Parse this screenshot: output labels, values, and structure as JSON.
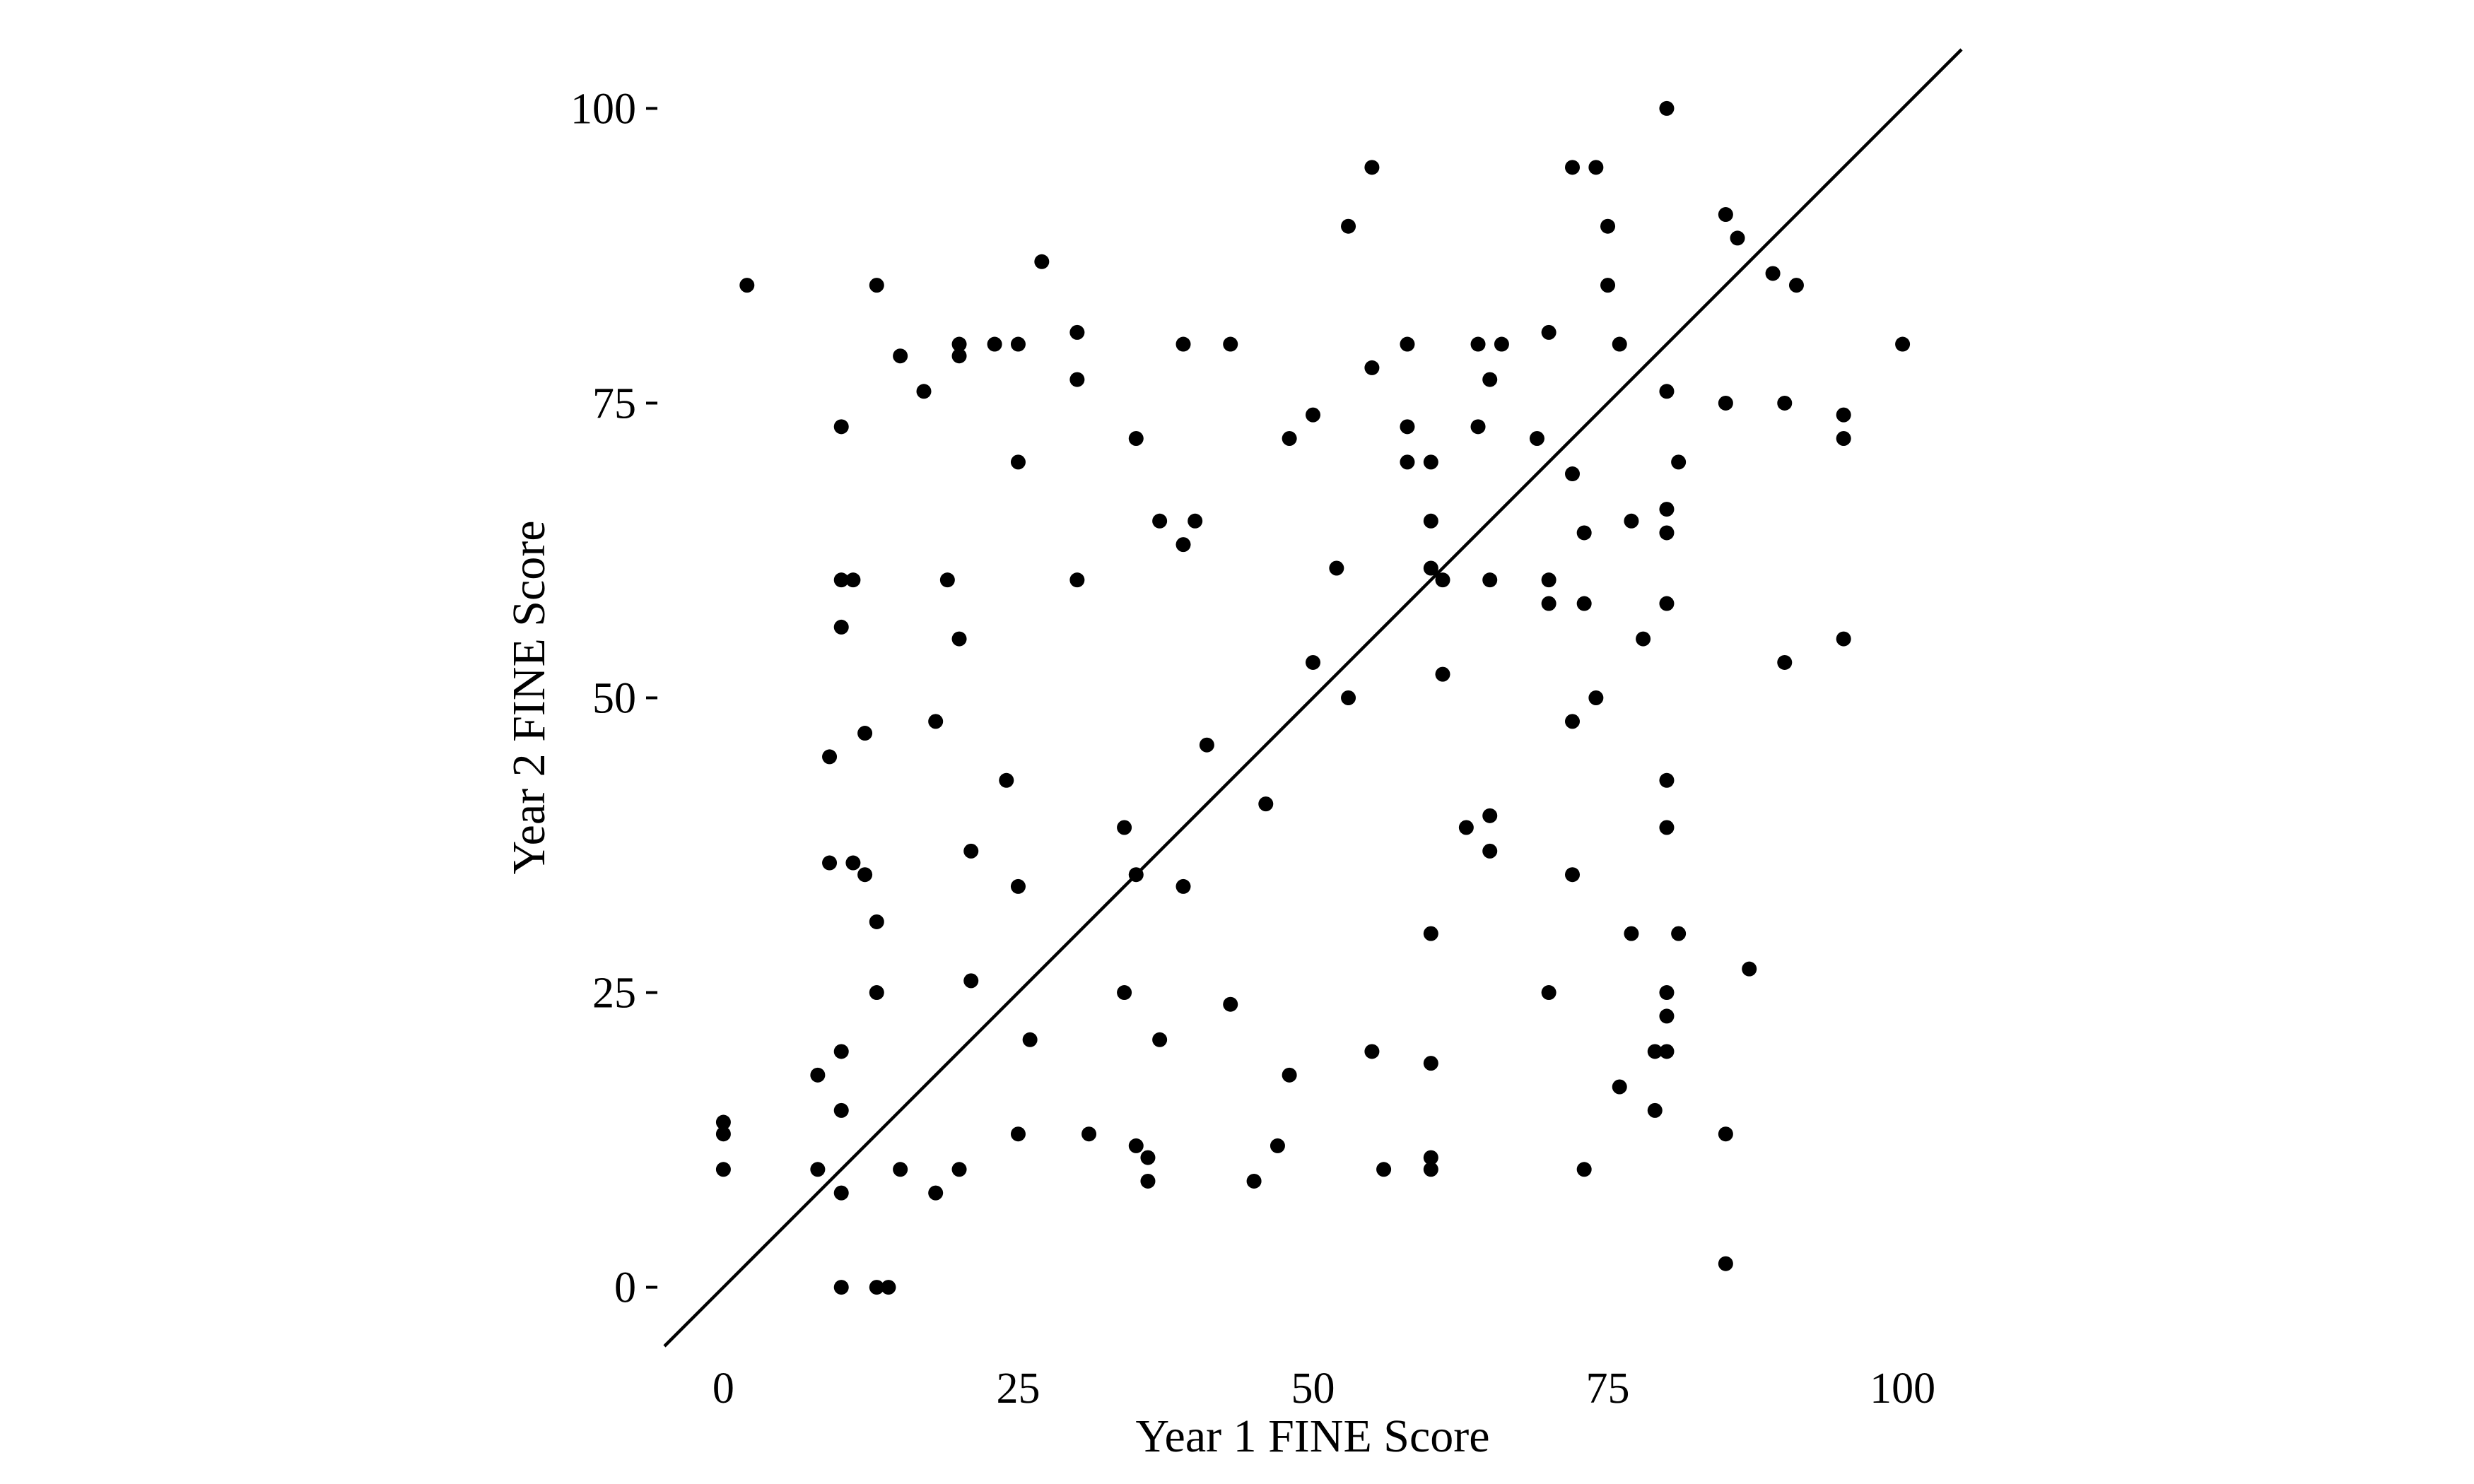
{
  "chart_data": {
    "type": "scatter",
    "xlabel": "Year 1 FINE Score",
    "ylabel": "Year 2 FINE Score",
    "xlim": [
      -5,
      105
    ],
    "ylim": [
      -5,
      105
    ],
    "x_ticks": [
      0,
      25,
      50,
      75,
      100
    ],
    "y_ticks": [
      0,
      25,
      50,
      75,
      100
    ],
    "x_tick_labels": [
      "0",
      "25",
      "50",
      "75",
      "100"
    ],
    "y_tick_labels": [
      "0",
      "25",
      "50",
      "75",
      "100"
    ],
    "grid": false,
    "legend": "none",
    "reference_line": {
      "type": "identity",
      "slope": 1,
      "intercept": 0
    },
    "colors": {
      "points": "#000000",
      "line": "#000000",
      "background": "#ffffff"
    },
    "points": [
      [
        0,
        14
      ],
      [
        0,
        13
      ],
      [
        0,
        10
      ],
      [
        2,
        85
      ],
      [
        8,
        18
      ],
      [
        8,
        10
      ],
      [
        9,
        45
      ],
      [
        9,
        36
      ],
      [
        10,
        73
      ],
      [
        10,
        60
      ],
      [
        10,
        56
      ],
      [
        10,
        20
      ],
      [
        10,
        15
      ],
      [
        10,
        8
      ],
      [
        10,
        0
      ],
      [
        11,
        60
      ],
      [
        11,
        36
      ],
      [
        12,
        47
      ],
      [
        12,
        35
      ],
      [
        13,
        85
      ],
      [
        13,
        31
      ],
      [
        13,
        25
      ],
      [
        13,
        0
      ],
      [
        14,
        0
      ],
      [
        15,
        79
      ],
      [
        15,
        10
      ],
      [
        17,
        76
      ],
      [
        18,
        48
      ],
      [
        18,
        8
      ],
      [
        19,
        60
      ],
      [
        20,
        80
      ],
      [
        20,
        79
      ],
      [
        20,
        55
      ],
      [
        20,
        10
      ],
      [
        21,
        37
      ],
      [
        21,
        26
      ],
      [
        23,
        80
      ],
      [
        24,
        43
      ],
      [
        25,
        80
      ],
      [
        25,
        70
      ],
      [
        25,
        34
      ],
      [
        25,
        13
      ],
      [
        26,
        21
      ],
      [
        27,
        87
      ],
      [
        30,
        81
      ],
      [
        30,
        77
      ],
      [
        30,
        60
      ],
      [
        31,
        13
      ],
      [
        34,
        39
      ],
      [
        34,
        25
      ],
      [
        35,
        72
      ],
      [
        35,
        35
      ],
      [
        35,
        12
      ],
      [
        36,
        11
      ],
      [
        36,
        9
      ],
      [
        37,
        65
      ],
      [
        37,
        21
      ],
      [
        39,
        80
      ],
      [
        39,
        63
      ],
      [
        39,
        34
      ],
      [
        40,
        65
      ],
      [
        41,
        46
      ],
      [
        43,
        80
      ],
      [
        43,
        24
      ],
      [
        45,
        9
      ],
      [
        46,
        41
      ],
      [
        47,
        12
      ],
      [
        48,
        72
      ],
      [
        48,
        18
      ],
      [
        50,
        74
      ],
      [
        50,
        53
      ],
      [
        52,
        61
      ],
      [
        53,
        90
      ],
      [
        53,
        50
      ],
      [
        55,
        95
      ],
      [
        55,
        78
      ],
      [
        55,
        20
      ],
      [
        56,
        10
      ],
      [
        58,
        80
      ],
      [
        58,
        73
      ],
      [
        58,
        70
      ],
      [
        60,
        70
      ],
      [
        60,
        65
      ],
      [
        60,
        61
      ],
      [
        60,
        30
      ],
      [
        60,
        19
      ],
      [
        60,
        11
      ],
      [
        60,
        10
      ],
      [
        61,
        60
      ],
      [
        61,
        52
      ],
      [
        63,
        39
      ],
      [
        64,
        80
      ],
      [
        64,
        73
      ],
      [
        65,
        77
      ],
      [
        65,
        60
      ],
      [
        65,
        40
      ],
      [
        65,
        37
      ],
      [
        66,
        80
      ],
      [
        69,
        72
      ],
      [
        70,
        81
      ],
      [
        70,
        60
      ],
      [
        70,
        58
      ],
      [
        70,
        25
      ],
      [
        72,
        95
      ],
      [
        72,
        69
      ],
      [
        72,
        48
      ],
      [
        72,
        35
      ],
      [
        73,
        64
      ],
      [
        73,
        58
      ],
      [
        73,
        10
      ],
      [
        74,
        95
      ],
      [
        74,
        50
      ],
      [
        75,
        90
      ],
      [
        75,
        85
      ],
      [
        76,
        80
      ],
      [
        76,
        17
      ],
      [
        77,
        65
      ],
      [
        77,
        30
      ],
      [
        78,
        55
      ],
      [
        79,
        20
      ],
      [
        79,
        15
      ],
      [
        80,
        100
      ],
      [
        80,
        76
      ],
      [
        80,
        66
      ],
      [
        80,
        64
      ],
      [
        80,
        58
      ],
      [
        80,
        43
      ],
      [
        80,
        39
      ],
      [
        80,
        25
      ],
      [
        80,
        23
      ],
      [
        80,
        20
      ],
      [
        81,
        70
      ],
      [
        81,
        30
      ],
      [
        85,
        91
      ],
      [
        85,
        75
      ],
      [
        85,
        13
      ],
      [
        85,
        2
      ],
      [
        86,
        89
      ],
      [
        87,
        27
      ],
      [
        89,
        86
      ],
      [
        90,
        75
      ],
      [
        90,
        53
      ],
      [
        91,
        85
      ],
      [
        95,
        74
      ],
      [
        95,
        72
      ],
      [
        95,
        55
      ],
      [
        100,
        80
      ]
    ]
  }
}
